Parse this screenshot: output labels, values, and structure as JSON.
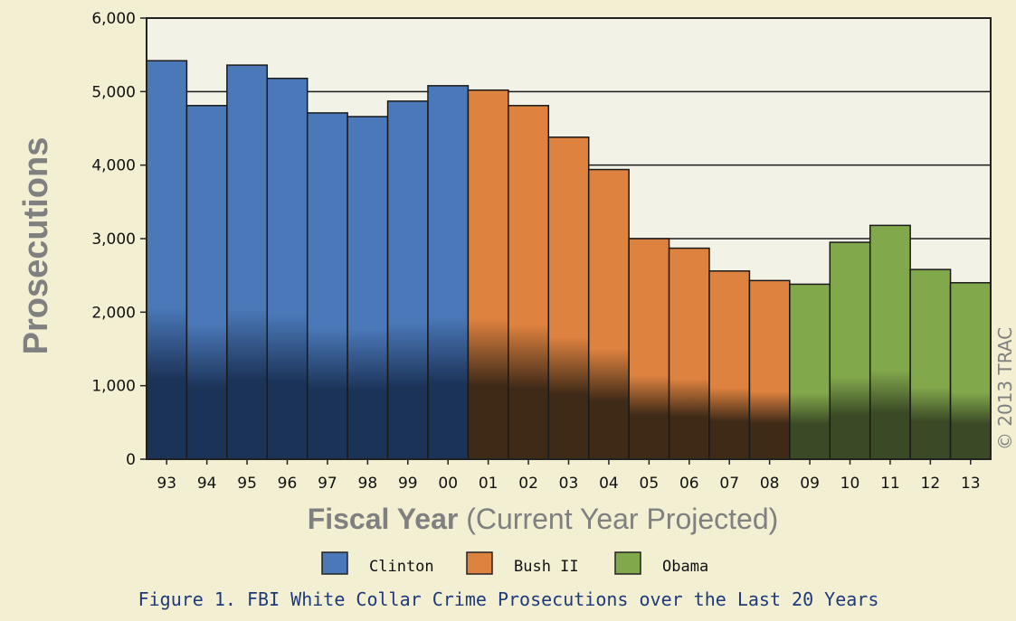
{
  "chart_data": {
    "type": "bar",
    "ylabel": "Prosecutions",
    "xlabel_bold": "Fiscal Year",
    "xlabel_rest": " (Current Year Projected)",
    "caption": "Figure 1. FBI White Collar Crime Prosecutions over the Last 20 Years",
    "copyright": "© 2013 TRAC",
    "ylim": [
      0,
      6000
    ],
    "yticks": [
      0,
      1000,
      2000,
      3000,
      4000,
      5000,
      6000
    ],
    "ytick_labels": [
      "0",
      "1,000",
      "2,000",
      "3,000",
      "4,000",
      "5,000",
      "6,000"
    ],
    "grid": true,
    "legend_position": "bottom",
    "categories": [
      "93",
      "94",
      "95",
      "96",
      "97",
      "98",
      "99",
      "00",
      "01",
      "02",
      "03",
      "04",
      "05",
      "06",
      "07",
      "08",
      "09",
      "10",
      "11",
      "12",
      "13"
    ],
    "values": [
      5420,
      4810,
      5360,
      5180,
      4710,
      4660,
      4870,
      5080,
      5020,
      4810,
      4380,
      3940,
      3000,
      2870,
      2560,
      2430,
      2380,
      2950,
      3180,
      2580,
      2400
    ],
    "groups": [
      "Clinton",
      "Clinton",
      "Clinton",
      "Clinton",
      "Clinton",
      "Clinton",
      "Clinton",
      "Clinton",
      "Bush II",
      "Bush II",
      "Bush II",
      "Bush II",
      "Bush II",
      "Bush II",
      "Bush II",
      "Bush II",
      "Obama",
      "Obama",
      "Obama",
      "Obama",
      "Obama"
    ],
    "series": [
      {
        "name": "Clinton",
        "color": "#4a78b8",
        "dark": "#1c3358"
      },
      {
        "name": "Bush II",
        "color": "#de823f",
        "dark": "#3f2a18"
      },
      {
        "name": "Obama",
        "color": "#82a84c",
        "dark": "#3b4a26"
      }
    ]
  }
}
